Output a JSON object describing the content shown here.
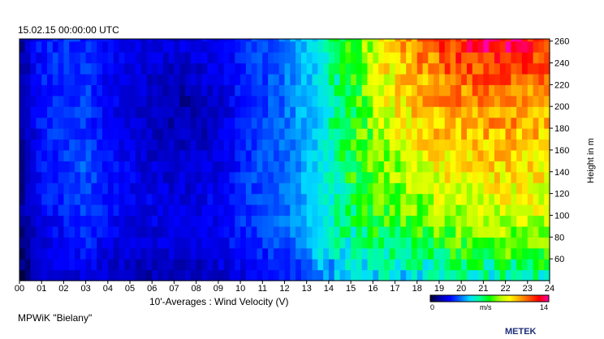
{
  "chart_data": {
    "type": "heatmap",
    "title": "15.02.15 00:00:00  UTC",
    "xlabel": "10'-Averages : Wind Velocity (V)",
    "ylabel": "Height in m",
    "footer_left": "MPWiK \"Bielany\"",
    "footer_right": "METEK",
    "xlim": [
      0,
      24
    ],
    "ylim": [
      40,
      262
    ],
    "x_ticks": [
      "00",
      "01",
      "02",
      "03",
      "04",
      "05",
      "06",
      "07",
      "08",
      "09",
      "10",
      "11",
      "12",
      "13",
      "14",
      "15",
      "16",
      "17",
      "18",
      "19",
      "20",
      "21",
      "22",
      "23",
      "24"
    ],
    "y_ticks": [
      60,
      80,
      100,
      120,
      140,
      160,
      180,
      200,
      220,
      240,
      260
    ],
    "colorbar": {
      "min_label": "0",
      "max_label": "14",
      "unit": "m/s",
      "min": 0,
      "max": 14,
      "colors": [
        "#000033",
        "#0000aa",
        "#0000ff",
        "#0066ff",
        "#00ddff",
        "#00ff99",
        "#00ff00",
        "#aaff00",
        "#ffff00",
        "#ffaa00",
        "#ff5500",
        "#ff0000",
        "#ff00aa"
      ]
    },
    "anchor_hours": [
      0,
      1,
      2,
      3,
      4,
      5,
      6,
      7,
      8,
      9,
      10,
      11,
      12,
      12.8,
      13.5,
      14.5,
      15.5,
      16.5,
      17.5,
      18.5,
      19.5,
      20.5,
      21.5,
      22.5,
      23.5,
      24
    ],
    "anchor_heights": [
      50,
      60,
      80,
      100,
      120,
      140,
      160,
      180,
      200,
      220,
      240,
      255
    ],
    "velocity_grid": [
      [
        0.5,
        0.6,
        0.7,
        0.8,
        0.9,
        0.9,
        1.0,
        1.0,
        1.0,
        1.0,
        1.0,
        1.0
      ],
      [
        1.5,
        1.8,
        2.0,
        2.2,
        2.4,
        2.4,
        2.4,
        2.6,
        2.6,
        2.6,
        2.6,
        2.6
      ],
      [
        1.8,
        2.0,
        2.3,
        2.5,
        2.8,
        3.0,
        3.0,
        2.8,
        2.8,
        2.8,
        2.8,
        2.8
      ],
      [
        2.0,
        2.4,
        2.7,
        2.9,
        3.1,
        3.3,
        3.3,
        3.0,
        3.0,
        3.0,
        2.9,
        2.8
      ],
      [
        1.6,
        1.9,
        2.2,
        2.4,
        2.5,
        2.5,
        2.4,
        2.3,
        2.2,
        2.2,
        2.3,
        2.3
      ],
      [
        1.4,
        1.6,
        1.8,
        2.0,
        2.2,
        2.2,
        2.0,
        1.8,
        1.8,
        1.8,
        1.9,
        1.9
      ],
      [
        1.3,
        1.5,
        1.8,
        2.0,
        2.0,
        1.8,
        1.6,
        1.6,
        1.4,
        1.6,
        1.8,
        1.8
      ],
      [
        1.5,
        1.7,
        2.0,
        2.1,
        1.9,
        1.7,
        1.5,
        1.3,
        1.1,
        1.4,
        1.7,
        1.8
      ],
      [
        1.4,
        1.6,
        1.8,
        1.9,
        1.9,
        1.7,
        1.5,
        1.3,
        1.2,
        1.5,
        1.8,
        1.9
      ],
      [
        1.7,
        2.0,
        2.2,
        2.3,
        2.2,
        2.0,
        1.8,
        1.7,
        1.6,
        1.8,
        2.0,
        2.1
      ],
      [
        2.0,
        2.3,
        2.6,
        2.8,
        2.8,
        2.7,
        2.6,
        2.5,
        2.5,
        2.6,
        2.7,
        2.7
      ],
      [
        2.3,
        2.6,
        2.9,
        3.1,
        3.2,
        3.2,
        3.1,
        3.0,
        3.0,
        3.0,
        3.0,
        3.1
      ],
      [
        2.6,
        2.9,
        3.3,
        3.6,
        3.6,
        3.6,
        3.5,
        3.5,
        3.5,
        3.5,
        3.6,
        3.7
      ],
      [
        3.0,
        3.4,
        3.8,
        4.0,
        4.1,
        4.1,
        4.1,
        4.1,
        4.2,
        4.3,
        4.3,
        4.3
      ],
      [
        3.8,
        4.6,
        4.9,
        4.8,
        4.7,
        4.6,
        4.5,
        4.5,
        4.5,
        4.5,
        4.6,
        4.7
      ],
      [
        4.2,
        5.0,
        5.5,
        5.8,
        6.0,
        6.2,
        6.2,
        6.2,
        6.2,
        6.3,
        6.4,
        6.4
      ],
      [
        4.5,
        5.4,
        6.0,
        6.6,
        6.9,
        7.1,
        7.2,
        7.2,
        7.3,
        7.5,
        7.7,
        7.8
      ],
      [
        4.8,
        5.8,
        6.5,
        7.2,
        7.6,
        7.8,
        8.1,
        8.5,
        8.8,
        9.0,
        9.3,
        9.5
      ],
      [
        5.0,
        6.0,
        6.8,
        7.5,
        8.0,
        8.3,
        8.8,
        9.3,
        9.7,
        10.0,
        10.4,
        10.6
      ],
      [
        5.2,
        6.2,
        7.0,
        7.8,
        8.5,
        8.8,
        9.4,
        9.8,
        10.2,
        10.5,
        10.9,
        11.3
      ],
      [
        5.3,
        6.5,
        7.4,
        8.1,
        8.9,
        9.3,
        9.8,
        10.2,
        10.6,
        11.1,
        11.7,
        12.0
      ],
      [
        5.4,
        6.7,
        7.6,
        8.3,
        9.0,
        9.5,
        10.0,
        10.4,
        10.9,
        11.4,
        12.0,
        12.8
      ],
      [
        5.6,
        6.8,
        7.8,
        8.5,
        9.2,
        9.6,
        10.1,
        10.5,
        11.0,
        11.5,
        12.1,
        13.3
      ],
      [
        5.7,
        7.0,
        7.9,
        8.5,
        9.1,
        9.6,
        10.1,
        10.5,
        11.0,
        11.6,
        12.2,
        12.9
      ],
      [
        5.8,
        7.0,
        8.0,
        8.6,
        9.0,
        9.4,
        9.8,
        10.2,
        10.6,
        11.0,
        11.6,
        12.4
      ],
      [
        5.8,
        7.0,
        8.0,
        8.6,
        9.0,
        9.4,
        9.8,
        10.2,
        10.6,
        11.0,
        11.6,
        12.2
      ]
    ]
  }
}
